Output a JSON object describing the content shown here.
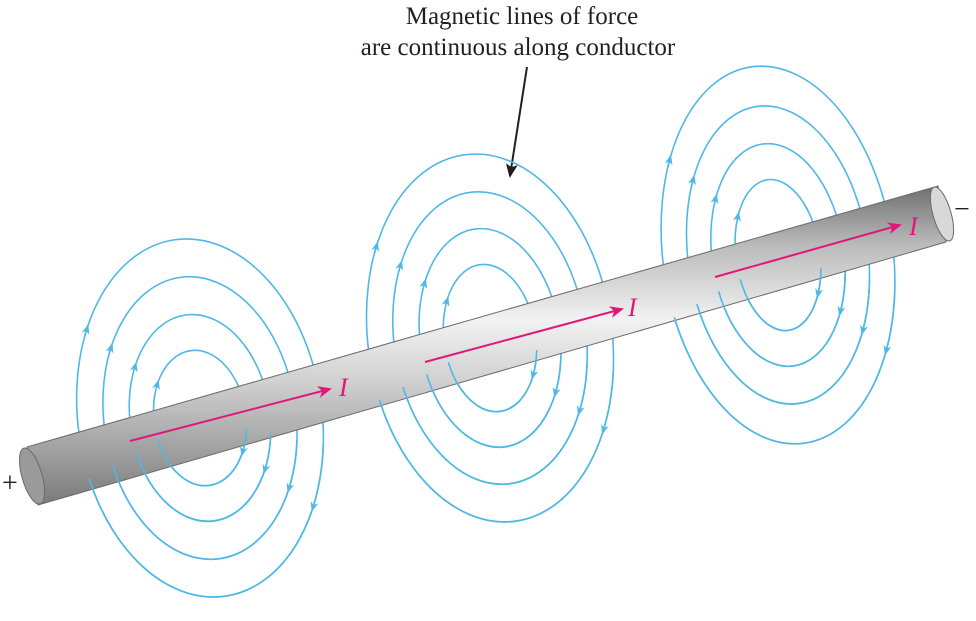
{
  "caption": {
    "line1": "Magnetic lines of force",
    "line2": "are continuous along conductor"
  },
  "terminals": {
    "positive": "+",
    "negative": "−"
  },
  "current_symbol": "I",
  "colors": {
    "field_lines": "#4fb8e6",
    "current": "#e0187a",
    "conductor_light": "#eeeeee",
    "conductor_mid": "#b7b7b7",
    "conductor_dark": "#7d7d7d",
    "text": "#231f20"
  }
}
